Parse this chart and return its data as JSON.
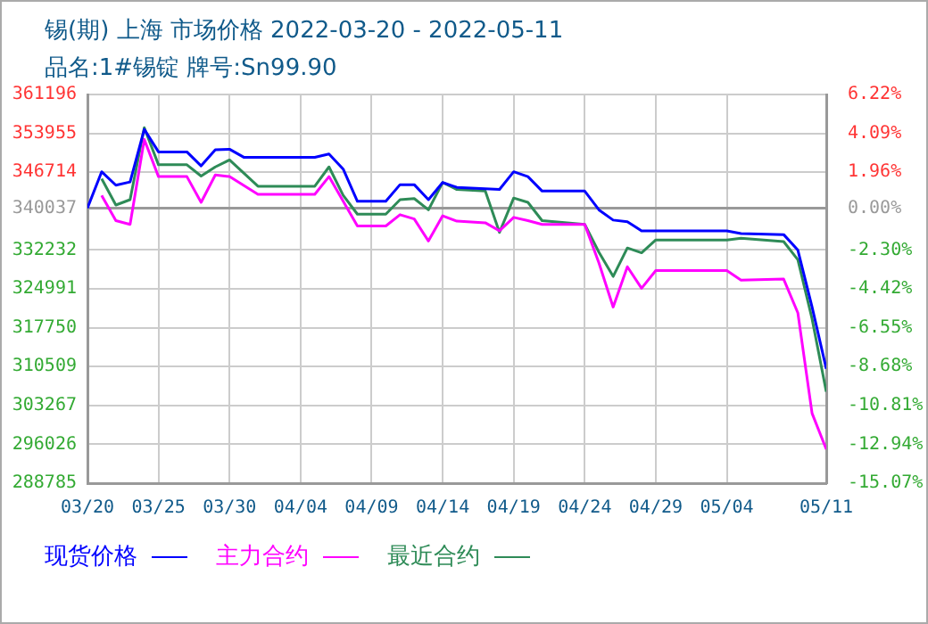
{
  "chart_data": {
    "type": "line",
    "title": "锡(期) 上海 市场价格 2022-03-20 - 2022-05-11",
    "subtitle": "品名:1#锡锭 牌号:Sn99.90",
    "xlim": [
      "2022-03-20",
      "2022-05-11"
    ],
    "xticks": [
      {
        "value": "2022-03-20",
        "label": "03/20"
      },
      {
        "value": "2022-03-25",
        "label": "03/25"
      },
      {
        "value": "2022-03-30",
        "label": "03/30"
      },
      {
        "value": "2022-04-04",
        "label": "04/04"
      },
      {
        "value": "2022-04-09",
        "label": "04/09"
      },
      {
        "value": "2022-04-14",
        "label": "04/14"
      },
      {
        "value": "2022-04-19",
        "label": "04/19"
      },
      {
        "value": "2022-04-24",
        "label": "04/24"
      },
      {
        "value": "2022-04-29",
        "label": "04/29"
      },
      {
        "value": "2022-05-04",
        "label": "05/04"
      },
      {
        "value": "2022-05-11",
        "label": "05/11"
      }
    ],
    "ylim": [
      288785,
      361196
    ],
    "yticks": [
      288785,
      296026,
      303267,
      310509,
      317750,
      324991,
      332232,
      340037,
      346714,
      353955,
      361196
    ],
    "y2lim": [
      -15.07,
      6.22
    ],
    "y2ticks": [
      {
        "value": -15.07,
        "label": "-15.07%"
      },
      {
        "value": -12.94,
        "label": "-12.94%"
      },
      {
        "value": -10.81,
        "label": "-10.81%"
      },
      {
        "value": -8.68,
        "label": "-8.68%"
      },
      {
        "value": -6.55,
        "label": "-6.55%"
      },
      {
        "value": -4.42,
        "label": "-4.42%"
      },
      {
        "value": -2.3,
        "label": "-2.30%"
      },
      {
        "value": 0,
        "label": "0.00%"
      },
      {
        "value": 1.96,
        "label": "1.96%"
      },
      {
        "value": 4.09,
        "label": "4.09%"
      },
      {
        "value": 6.22,
        "label": "6.22%"
      }
    ],
    "ref_lines": [
      {
        "axis": "y",
        "value": 340037,
        "color": "#999999"
      }
    ],
    "grid": true,
    "legend": "bottom",
    "marker": "none",
    "line_style": "solid",
    "series": [
      {
        "name": "现货价格",
        "color": "#0000ff",
        "x": [
          "2022-03-20",
          "2022-03-21",
          "2022-03-22",
          "2022-03-23",
          "2022-03-24",
          "2022-03-25",
          "2022-03-27",
          "2022-03-28",
          "2022-03-29",
          "2022-03-30",
          "2022-03-31",
          "2022-04-05",
          "2022-04-06",
          "2022-04-07",
          "2022-04-08",
          "2022-04-10",
          "2022-04-11",
          "2022-04-12",
          "2022-04-13",
          "2022-04-14",
          "2022-04-15",
          "2022-04-18",
          "2022-04-19",
          "2022-04-20",
          "2022-04-21",
          "2022-04-24",
          "2022-04-25",
          "2022-04-26",
          "2022-04-27",
          "2022-04-28",
          "2022-05-04",
          "2022-05-05",
          "2022-05-08",
          "2022-05-09",
          "2022-05-10",
          "2022-05-11"
        ],
        "values": [
          340037,
          346800,
          344300,
          344900,
          354700,
          350500,
          350500,
          347900,
          350900,
          351000,
          349500,
          349500,
          350100,
          347300,
          341300,
          341300,
          344400,
          344400,
          341600,
          344800,
          343900,
          343500,
          346800,
          345900,
          343200,
          343200,
          339700,
          337800,
          337500,
          335800,
          335800,
          335300,
          335100,
          332200,
          321600,
          310100
        ]
      },
      {
        "name": "主力合约",
        "color": "#ff00ff",
        "x": [
          "2022-03-21",
          "2022-03-22",
          "2022-03-23",
          "2022-03-24",
          "2022-03-25",
          "2022-03-27",
          "2022-03-28",
          "2022-03-29",
          "2022-03-30",
          "2022-04-01",
          "2022-04-05",
          "2022-04-06",
          "2022-04-07",
          "2022-04-08",
          "2022-04-10",
          "2022-04-11",
          "2022-04-12",
          "2022-04-13",
          "2022-04-14",
          "2022-04-15",
          "2022-04-17",
          "2022-04-18",
          "2022-04-19",
          "2022-04-20",
          "2022-04-21",
          "2022-04-24",
          "2022-04-25",
          "2022-04-26",
          "2022-04-27",
          "2022-04-28",
          "2022-04-29",
          "2022-05-04",
          "2022-05-05",
          "2022-05-08",
          "2022-05-09",
          "2022-05-10",
          "2022-05-11"
        ],
        "values": [
          342400,
          337700,
          337000,
          352800,
          345900,
          345900,
          341100,
          346200,
          345900,
          342600,
          342600,
          345900,
          341300,
          336700,
          336700,
          338800,
          338000,
          333900,
          338600,
          337600,
          337300,
          335800,
          338300,
          337700,
          337000,
          337000,
          329800,
          321600,
          329100,
          325100,
          328400,
          328400,
          326600,
          326800,
          320500,
          301800,
          295100
        ]
      },
      {
        "name": "最近合约",
        "color": "#2e8b57",
        "x": [
          "2022-03-21",
          "2022-03-22",
          "2022-03-23",
          "2022-03-24",
          "2022-03-25",
          "2022-03-27",
          "2022-03-28",
          "2022-03-29",
          "2022-03-30",
          "2022-04-01",
          "2022-04-05",
          "2022-04-06",
          "2022-04-07",
          "2022-04-08",
          "2022-04-10",
          "2022-04-11",
          "2022-04-12",
          "2022-04-13",
          "2022-04-14",
          "2022-04-15",
          "2022-04-17",
          "2022-04-18",
          "2022-04-19",
          "2022-04-20",
          "2022-04-21",
          "2022-04-24",
          "2022-04-25",
          "2022-04-26",
          "2022-04-27",
          "2022-04-28",
          "2022-04-29",
          "2022-05-04",
          "2022-05-05",
          "2022-05-08",
          "2022-05-09",
          "2022-05-10",
          "2022-05-11"
        ],
        "values": [
          345500,
          340600,
          341600,
          355000,
          348100,
          348100,
          346000,
          347700,
          349000,
          344100,
          344100,
          347700,
          342400,
          338900,
          338900,
          341600,
          341800,
          339700,
          344800,
          343500,
          343200,
          335500,
          341900,
          341100,
          337700,
          337000,
          331800,
          327300,
          332600,
          331700,
          334100,
          334100,
          334400,
          333800,
          330400,
          319400,
          305800
        ]
      }
    ]
  }
}
